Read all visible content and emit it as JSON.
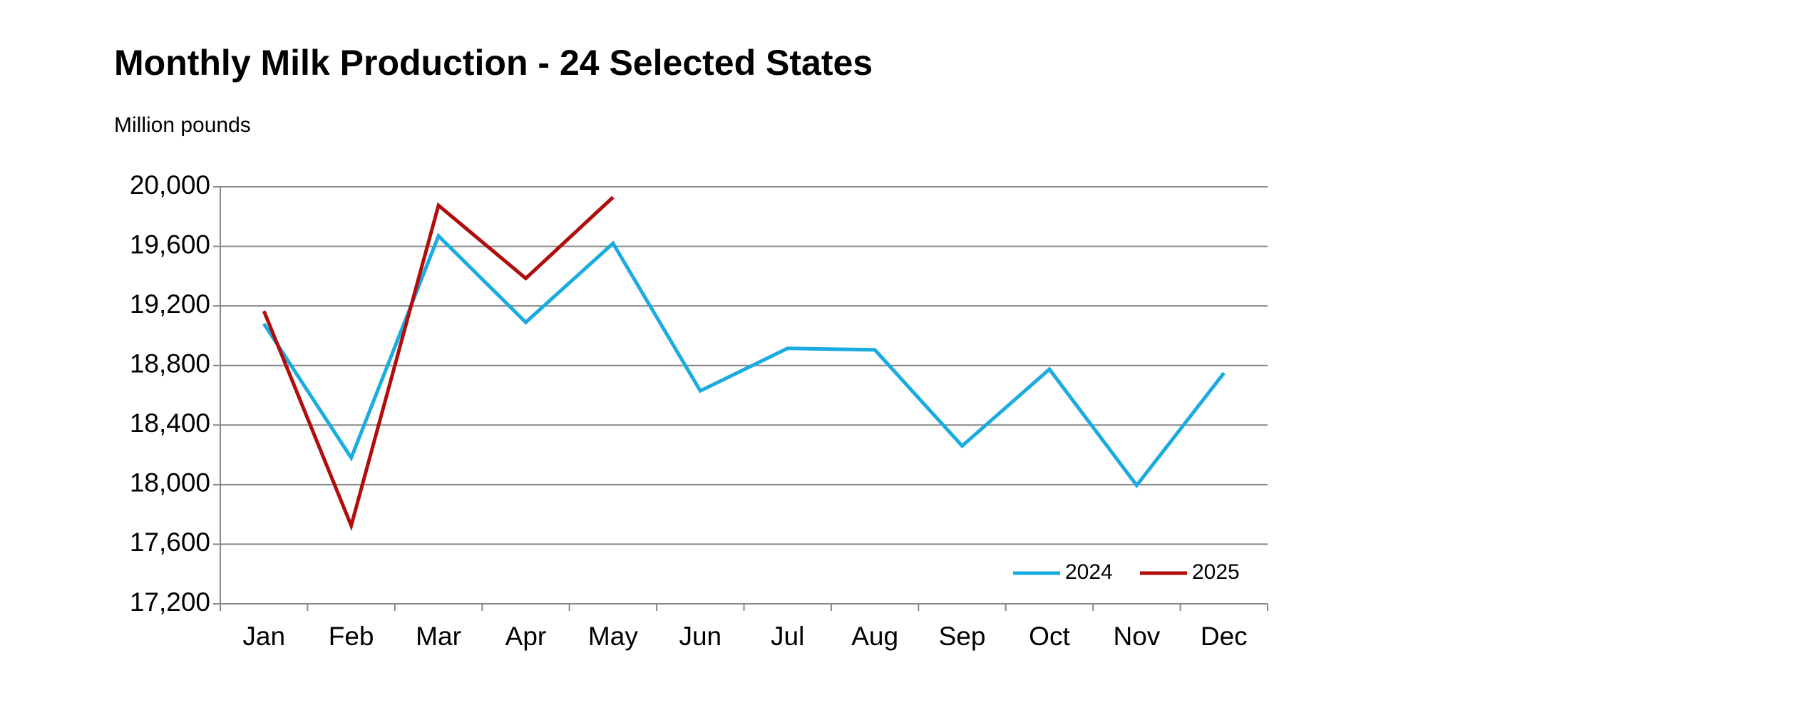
{
  "chart_data": {
    "type": "line",
    "title": "Monthly Milk Production - 24 Selected States",
    "subtitle": "Million pounds",
    "categories": [
      "Jan",
      "Feb",
      "Mar",
      "Apr",
      "May",
      "Jun",
      "Jul",
      "Aug",
      "Sep",
      "Oct",
      "Nov",
      "Dec"
    ],
    "series": [
      {
        "name": "2024",
        "color": "#1aabe0",
        "values": [
          19080,
          18180,
          19670,
          19090,
          19620,
          18630,
          18915,
          18905,
          18260,
          18775,
          17995,
          18750
        ]
      },
      {
        "name": "2025",
        "color": "#b00d0d",
        "values": [
          19165,
          17725,
          19875,
          19385,
          19930,
          null,
          null,
          null,
          null,
          null,
          null,
          null
        ]
      }
    ],
    "ylim": [
      17200,
      20000
    ],
    "yticks": [
      {
        "value": 17200,
        "label": "17,200"
      },
      {
        "value": 17600,
        "label": "17,600"
      },
      {
        "value": 18000,
        "label": "18,000"
      },
      {
        "value": 18400,
        "label": "18,400"
      },
      {
        "value": 18800,
        "label": "18,800"
      },
      {
        "value": 19200,
        "label": "19,200"
      },
      {
        "value": 19600,
        "label": "19,600"
      },
      {
        "value": 20000,
        "label": "20,000"
      }
    ],
    "grid": true,
    "legend": "lower right"
  }
}
